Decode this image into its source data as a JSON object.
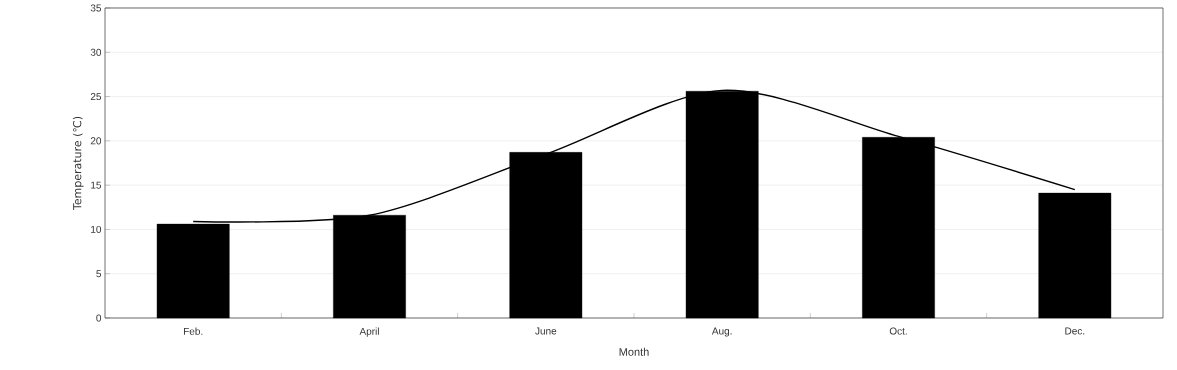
{
  "chart_data": {
    "type": "bar",
    "xlabel": "Month",
    "ylabel": "Temperature (℃)",
    "categories": [
      "Feb.",
      "April",
      "June",
      "Aug.",
      "Oct.",
      "Dec."
    ],
    "series": [
      {
        "color": "#000000",
        "values": [
          10.6,
          11.6,
          18.7,
          25.6,
          20.4,
          14.1
        ]
      },
      {
        "type": "line",
        "color": "#000000",
        "values": [
          10.9,
          11.6,
          18.5,
          25.7,
          20.5,
          14.5
        ]
      }
    ],
    "ylim": [
      0,
      35
    ],
    "yticks": [
      0,
      5,
      10,
      15,
      20,
      25,
      30,
      35
    ],
    "grid": "y"
  }
}
